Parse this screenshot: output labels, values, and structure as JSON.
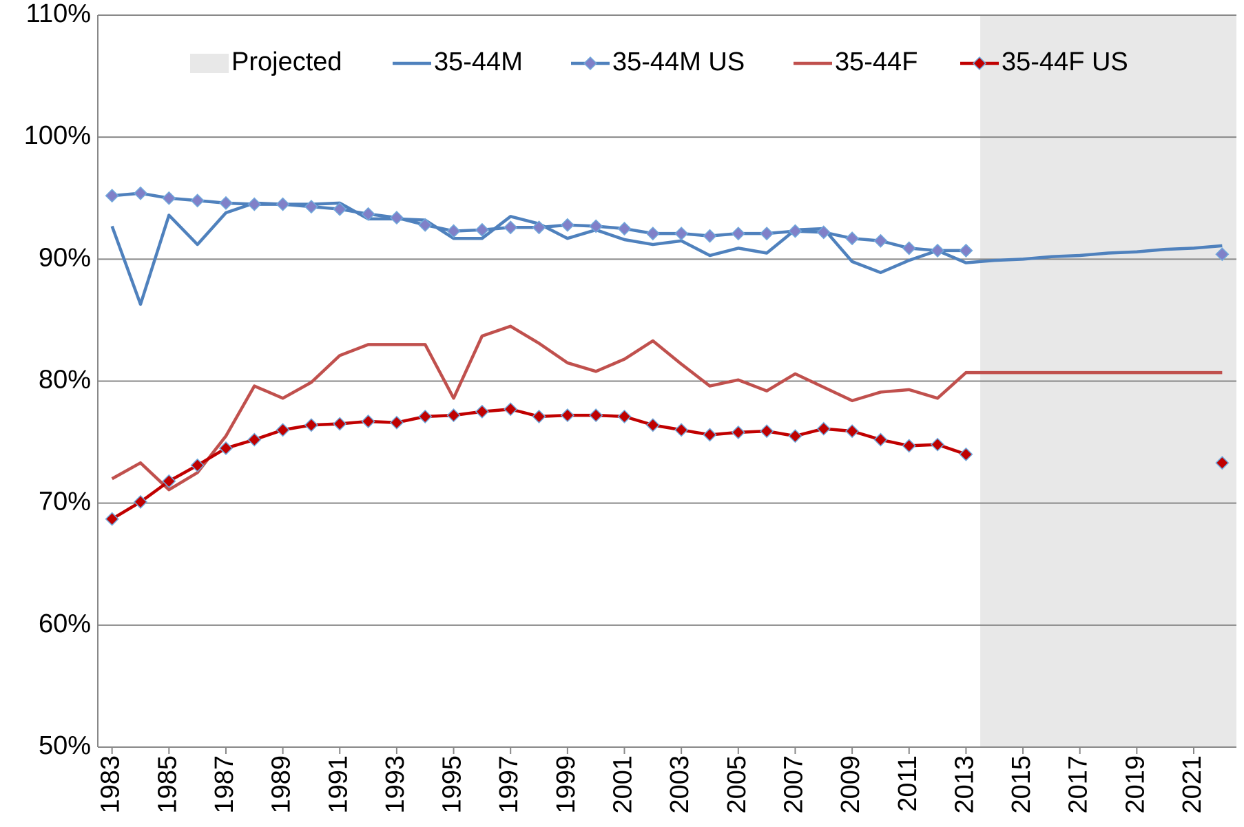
{
  "chart_data": {
    "type": "line",
    "x": [
      1983,
      1984,
      1985,
      1986,
      1987,
      1988,
      1989,
      1990,
      1991,
      1992,
      1993,
      1994,
      1995,
      1996,
      1997,
      1998,
      1999,
      2000,
      2001,
      2002,
      2003,
      2004,
      2005,
      2006,
      2007,
      2008,
      2009,
      2010,
      2011,
      2012,
      2013,
      2014,
      2015,
      2016,
      2017,
      2018,
      2019,
      2020,
      2021,
      2022
    ],
    "xlim": [
      1982.5,
      2022.5
    ],
    "xticks": [
      1983,
      1985,
      1987,
      1989,
      1991,
      1993,
      1995,
      1997,
      1999,
      2001,
      2003,
      2005,
      2007,
      2009,
      2011,
      2013,
      2015,
      2017,
      2019,
      2021
    ],
    "ylim": [
      50,
      110
    ],
    "yticks": [
      {
        "value": 50,
        "label": "50%"
      },
      {
        "value": 60,
        "label": "60%"
      },
      {
        "value": 70,
        "label": "70%"
      },
      {
        "value": 80,
        "label": "80%"
      },
      {
        "value": 90,
        "label": "90%"
      },
      {
        "value": 100,
        "label": "100%"
      },
      {
        "value": 110,
        "label": "110%"
      }
    ],
    "grid": true,
    "legend": "top",
    "projected": {
      "name": "Projected",
      "color": "#e8e8e8",
      "xlim": [
        2013.5,
        2022.5
      ]
    },
    "series": [
      {
        "name": "35-44M",
        "color": "#4f81bd",
        "marker": null,
        "values": [
          92.7,
          86.3,
          93.6,
          91.2,
          93.8,
          94.6,
          94.5,
          94.5,
          94.6,
          93.3,
          93.3,
          93.2,
          91.7,
          91.7,
          93.5,
          92.9,
          91.7,
          92.4,
          91.6,
          91.2,
          91.5,
          90.3,
          90.9,
          90.5,
          92.4,
          92.5,
          89.8,
          88.9,
          89.9,
          90.7,
          89.7,
          89.9,
          90.0,
          90.2,
          90.3,
          90.5,
          90.6,
          90.8,
          90.9,
          91.1
        ]
      },
      {
        "name": "35-44M US",
        "color": "#4f81bd",
        "marker": "diamond",
        "marker_color": "#8080c8",
        "values": [
          95.2,
          95.4,
          95.0,
          94.8,
          94.6,
          94.5,
          94.5,
          94.3,
          94.1,
          93.7,
          93.4,
          92.8,
          92.3,
          92.4,
          92.6,
          92.6,
          92.8,
          92.7,
          92.5,
          92.1,
          92.1,
          91.9,
          92.1,
          92.1,
          92.3,
          92.2,
          91.7,
          91.5,
          90.9,
          90.7,
          90.7,
          null,
          null,
          null,
          null,
          null,
          null,
          null,
          null,
          90.4
        ]
      },
      {
        "name": "35-44F",
        "color": "#c0504d",
        "marker": null,
        "values": [
          72.0,
          73.3,
          71.1,
          72.5,
          75.5,
          79.6,
          78.6,
          79.9,
          82.1,
          83.0,
          83.0,
          83.0,
          78.6,
          83.7,
          84.5,
          83.1,
          81.5,
          80.8,
          81.8,
          83.3,
          81.4,
          79.6,
          80.1,
          79.2,
          80.6,
          79.5,
          78.4,
          79.1,
          79.3,
          78.6,
          80.7,
          80.7,
          80.7,
          80.7,
          80.7,
          80.7,
          80.7,
          80.7,
          80.7,
          80.7
        ]
      },
      {
        "name": "35-44F US",
        "color": "#c00000",
        "marker": "diamond",
        "marker_color": "#c00000",
        "values": [
          68.7,
          70.1,
          71.8,
          73.1,
          74.5,
          75.2,
          76.0,
          76.4,
          76.5,
          76.7,
          76.6,
          77.1,
          77.2,
          77.5,
          77.7,
          77.1,
          77.2,
          77.2,
          77.1,
          76.4,
          76.0,
          75.6,
          75.8,
          75.9,
          75.5,
          76.1,
          75.9,
          75.2,
          74.7,
          74.8,
          74.0,
          null,
          null,
          null,
          null,
          null,
          null,
          null,
          null,
          73.3
        ]
      }
    ]
  }
}
